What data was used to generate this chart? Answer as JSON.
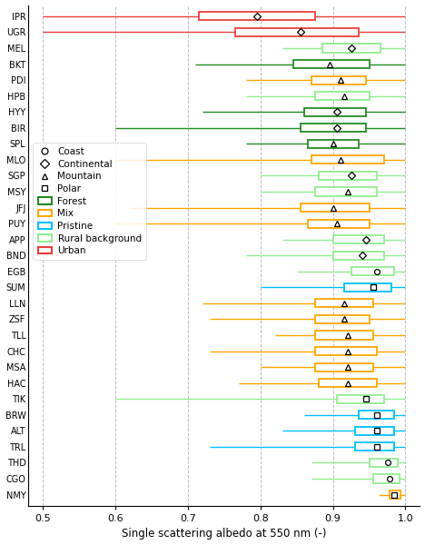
{
  "stations": [
    "IPR",
    "UGR",
    "MEL",
    "BKT",
    "PDI",
    "HPB",
    "HYY",
    "BIR",
    "SPL",
    "MLO",
    "SGP",
    "MSY",
    "JFJ",
    "PUY",
    "APP",
    "BND",
    "EGB",
    "SUM",
    "LLN",
    "ZSF",
    "TLL",
    "CHC",
    "MSA",
    "HAC",
    "TIK",
    "BRW",
    "ALT",
    "TRL",
    "THD",
    "CGO",
    "NMY"
  ],
  "marker_types": [
    "Continental",
    "Continental",
    "Continental",
    "Mountain",
    "Mountain",
    "Mountain",
    "Continental",
    "Continental",
    "Mountain",
    "Mountain",
    "Continental",
    "Mountain",
    "Mountain",
    "Mountain",
    "Continental",
    "Continental",
    "Coast",
    "Polar",
    "Mountain",
    "Mountain",
    "Mountain",
    "Mountain",
    "Mountain",
    "Mountain",
    "Polar",
    "Polar",
    "Polar",
    "Polar",
    "Coast",
    "Coast",
    "Polar"
  ],
  "box_data": {
    "IPR": [
      0.5,
      0.715,
      0.795,
      0.875,
      1.0
    ],
    "UGR": [
      0.5,
      0.765,
      0.855,
      0.935,
      1.0
    ],
    "MEL": [
      0.83,
      0.885,
      0.925,
      0.965,
      1.0
    ],
    "BKT": [
      0.71,
      0.845,
      0.895,
      0.95,
      1.0
    ],
    "PDI": [
      0.78,
      0.87,
      0.91,
      0.945,
      1.0
    ],
    "HPB": [
      0.78,
      0.875,
      0.915,
      0.95,
      1.0
    ],
    "HYY": [
      0.72,
      0.86,
      0.905,
      0.945,
      1.0
    ],
    "BIR": [
      0.6,
      0.855,
      0.905,
      0.945,
      1.0
    ],
    "SPL": [
      0.78,
      0.865,
      0.9,
      0.935,
      1.0
    ],
    "MLO": [
      0.6,
      0.87,
      0.91,
      0.97,
      1.0
    ],
    "SGP": [
      0.8,
      0.88,
      0.925,
      0.96,
      1.0
    ],
    "MSY": [
      0.8,
      0.875,
      0.92,
      0.96,
      1.0
    ],
    "JFJ": [
      0.62,
      0.855,
      0.9,
      0.95,
      1.0
    ],
    "PUY": [
      0.6,
      0.865,
      0.905,
      0.95,
      1.0
    ],
    "APP": [
      0.83,
      0.9,
      0.945,
      0.97,
      1.0
    ],
    "BND": [
      0.78,
      0.9,
      0.94,
      0.97,
      1.0
    ],
    "EGB": [
      0.85,
      0.925,
      0.96,
      0.985,
      1.0
    ],
    "SUM": [
      0.8,
      0.915,
      0.955,
      0.98,
      1.0
    ],
    "LLN": [
      0.72,
      0.875,
      0.915,
      0.955,
      1.0
    ],
    "ZSF": [
      0.73,
      0.875,
      0.915,
      0.95,
      1.0
    ],
    "TLL": [
      0.82,
      0.875,
      0.92,
      0.955,
      1.0
    ],
    "CHC": [
      0.73,
      0.875,
      0.92,
      0.96,
      1.0
    ],
    "MSA": [
      0.8,
      0.875,
      0.92,
      0.955,
      1.0
    ],
    "HAC": [
      0.77,
      0.88,
      0.92,
      0.96,
      1.0
    ],
    "TIK": [
      0.6,
      0.905,
      0.945,
      0.97,
      1.0
    ],
    "BRW": [
      0.86,
      0.935,
      0.96,
      0.985,
      1.0
    ],
    "ALT": [
      0.83,
      0.93,
      0.96,
      0.985,
      1.0
    ],
    "TRL": [
      0.73,
      0.93,
      0.96,
      0.985,
      1.0
    ],
    "THD": [
      0.87,
      0.95,
      0.975,
      0.99,
      1.0
    ],
    "CGO": [
      0.87,
      0.955,
      0.978,
      0.992,
      1.0
    ],
    "NMY": [
      0.963,
      0.978,
      0.985,
      0.993,
      1.0
    ]
  },
  "box_colors": {
    "IPR": "#E8403A",
    "UGR": "#E8403A",
    "MEL": "#90EE90",
    "BKT": "#228B22",
    "PDI": "#FFA500",
    "HPB": "#90EE90",
    "HYY": "#228B22",
    "BIR": "#228B22",
    "SPL": "#228B22",
    "MLO": "#FFA500",
    "SGP": "#90EE90",
    "MSY": "#90EE90",
    "JFJ": "#FFA500",
    "PUY": "#FFA500",
    "APP": "#90EE90",
    "BND": "#90EE90",
    "EGB": "#90EE90",
    "SUM": "#00BFFF",
    "LLN": "#FFA500",
    "ZSF": "#FFA500",
    "TLL": "#FFA500",
    "CHC": "#FFA500",
    "MSA": "#FFA500",
    "HAC": "#FFA500",
    "TIK": "#90EE90",
    "BRW": "#00BFFF",
    "ALT": "#00BFFF",
    "TRL": "#00BFFF",
    "THD": "#90EE90",
    "CGO": "#90EE90",
    "NMY": "#FFA500"
  },
  "xlabel": "Single scattering albedo at 550 nm (-)",
  "xlim": [
    0.48,
    1.02
  ],
  "xticks": [
    0.5,
    0.6,
    0.7,
    0.8,
    0.9,
    1.0
  ],
  "background_color": "#FFFFFF",
  "legend_markers": [
    {
      "label": "Coast",
      "marker": "o"
    },
    {
      "label": "Continental",
      "marker": "D"
    },
    {
      "label": "Mountain",
      "marker": "^"
    },
    {
      "label": "Polar",
      "marker": "s"
    }
  ],
  "legend_categories": [
    {
      "label": "Forest",
      "color": "#228B22"
    },
    {
      "label": "Mix",
      "color": "#FFA500"
    },
    {
      "label": "Pristine",
      "color": "#00BFFF"
    },
    {
      "label": "Rural background",
      "color": "#90EE90"
    },
    {
      "label": "Urban",
      "color": "#E8403A"
    }
  ]
}
